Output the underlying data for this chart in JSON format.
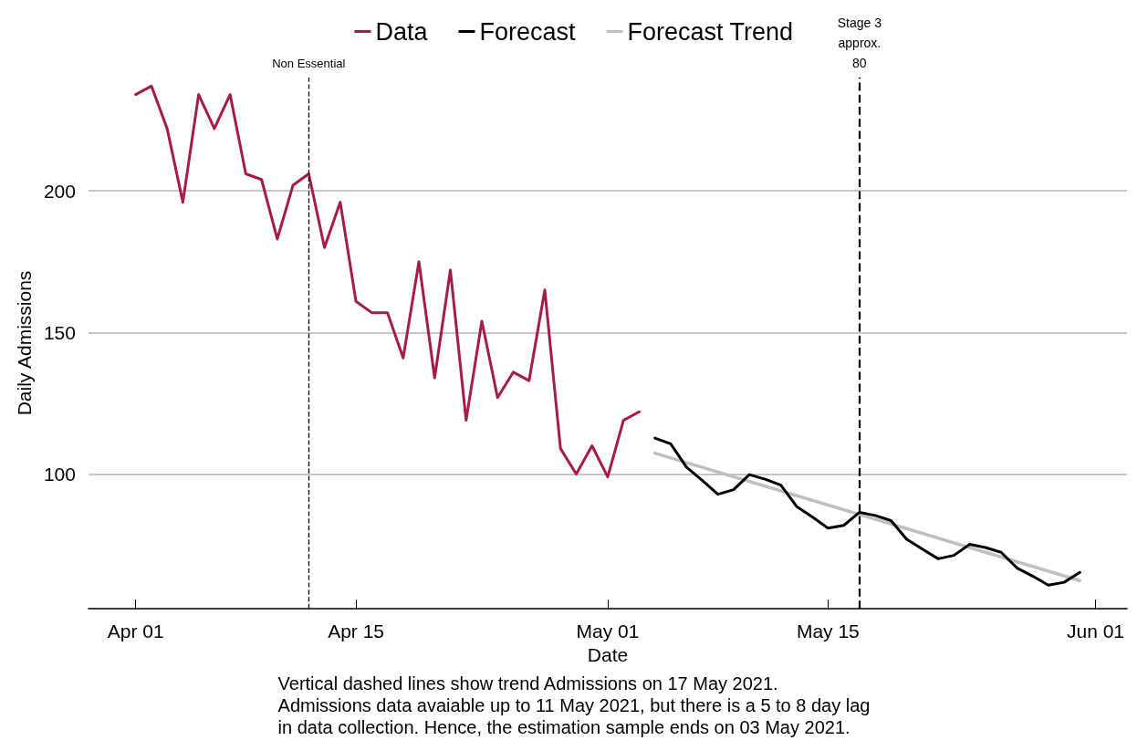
{
  "chart_data": {
    "type": "line",
    "xlabel": "Date",
    "ylabel": "Daily Admissions",
    "annotations": [
      "Vertical dashed lines show trend Admissions on 17 May 2021.\nAdmissions data avaiable up to 11 May 2021, but there is a 5 to 8 day lag\nin data collection. Hence, the estimation sample ends on 03 May 2021."
    ],
    "xlim": [
      "2021-03-29",
      "2021-06-03"
    ],
    "xticks": [
      {
        "value": "2021-04-01",
        "label": "Apr 01"
      },
      {
        "value": "2021-04-15",
        "label": "Apr 15"
      },
      {
        "value": "2021-05-01",
        "label": "May 01"
      },
      {
        "value": "2021-05-15",
        "label": "May 15"
      },
      {
        "value": "2021-06-01",
        "label": "Jun 01"
      }
    ],
    "ylim": [
      52.5,
      240
    ],
    "yticks": [
      100,
      150,
      200
    ],
    "grid": "y",
    "legend": "top",
    "marker": "none",
    "line_style": "solid",
    "ref_lines": [
      {
        "axis": "x",
        "value": "2021-04-12",
        "label": "Non Essential",
        "color": "#000000",
        "line_style": "dashed"
      },
      {
        "axis": "x",
        "value": "2021-05-17",
        "label": "Stage 3\napprox.\n80",
        "color": "#000000",
        "line_style": "dashed"
      }
    ],
    "series": [
      {
        "name": "Data",
        "color": "#a61c45",
        "x": [
          "2021-04-01",
          "2021-04-02",
          "2021-04-03",
          "2021-04-04",
          "2021-04-05",
          "2021-04-06",
          "2021-04-07",
          "2021-04-08",
          "2021-04-09",
          "2021-04-10",
          "2021-04-11",
          "2021-04-12",
          "2021-04-13",
          "2021-04-14",
          "2021-04-15",
          "2021-04-16",
          "2021-04-17",
          "2021-04-18",
          "2021-04-19",
          "2021-04-20",
          "2021-04-21",
          "2021-04-22",
          "2021-04-23",
          "2021-04-24",
          "2021-04-25",
          "2021-04-26",
          "2021-04-27",
          "2021-04-28",
          "2021-04-29",
          "2021-04-30",
          "2021-05-01",
          "2021-05-02",
          "2021-05-03"
        ],
        "values": [
          234,
          237,
          222,
          196,
          234,
          222,
          234,
          206,
          204,
          183,
          202,
          206,
          180,
          196,
          161,
          157,
          157,
          141,
          175,
          134,
          172,
          119,
          154,
          127,
          136,
          133,
          165,
          109,
          100,
          110,
          99,
          119,
          122
        ]
      },
      {
        "name": "Forecast",
        "color": "#000000",
        "x": [
          "2021-05-04",
          "2021-05-05",
          "2021-05-06",
          "2021-05-07",
          "2021-05-08",
          "2021-05-09",
          "2021-05-10",
          "2021-05-11",
          "2021-05-12",
          "2021-05-13",
          "2021-05-14",
          "2021-05-15",
          "2021-05-16",
          "2021-05-17",
          "2021-05-18",
          "2021-05-19",
          "2021-05-20",
          "2021-05-21",
          "2021-05-22",
          "2021-05-23",
          "2021-05-24",
          "2021-05-25",
          "2021-05-26",
          "2021-05-27",
          "2021-05-28",
          "2021-05-29",
          "2021-05-30",
          "2021-05-31"
        ],
        "values": [
          112.7,
          110.7,
          102.5,
          97.8,
          92.9,
          94.5,
          99.8,
          98.2,
          96.1,
          88.6,
          84.9,
          80.9,
          81.9,
          86.5,
          85.4,
          83.6,
          77.0,
          73.5,
          70.1,
          71.3,
          75.2,
          74.1,
          72.4,
          66.9,
          64.0,
          60.8,
          61.8,
          65.3
        ]
      },
      {
        "name": "Forecast Trend",
        "color": "#c0c0c0",
        "x": [
          "2021-05-04",
          "2021-05-31"
        ],
        "values": [
          107.4,
          62.4
        ]
      }
    ]
  }
}
